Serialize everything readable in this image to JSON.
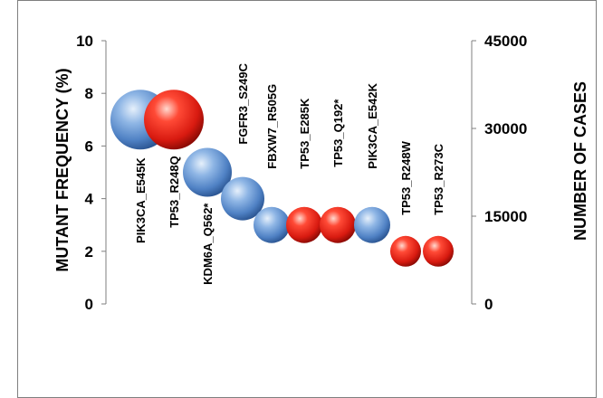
{
  "chart_data": {
    "type": "bubble",
    "title": "",
    "ylabel": "MUTANT FREQUENCY (%)",
    "y2label": "NUMBER OF CASES",
    "ylim": [
      0,
      10
    ],
    "y2lim": [
      0,
      45000
    ],
    "yticks": [
      "0",
      "2",
      "4",
      "6",
      "8",
      "10"
    ],
    "y2ticks": [
      "0",
      "15000",
      "30000",
      "45000"
    ],
    "grid": false,
    "points": [
      {
        "label": "PIK3CA_E545K",
        "y": 7.0,
        "gene": "PIK3CA",
        "color": "blue"
      },
      {
        "label": "TP53_R248Q",
        "y": 7.0,
        "gene": "TP53",
        "color": "red"
      },
      {
        "label": "KDM6A_Q562*",
        "y": 5.0,
        "gene": "KDM6A",
        "color": "blue"
      },
      {
        "label": "FGFR3_S249C",
        "y": 4.0,
        "gene": "FGFR3",
        "color": "blue"
      },
      {
        "label": "FBXW7_R505G",
        "y": 3.0,
        "gene": "FBXW7",
        "color": "blue"
      },
      {
        "label": "TP53_E285K",
        "y": 3.0,
        "gene": "TP53",
        "color": "red"
      },
      {
        "label": "TP53_Q192*",
        "y": 3.0,
        "gene": "TP53",
        "color": "red"
      },
      {
        "label": "PIK3CA_E542K",
        "y": 3.0,
        "gene": "PIK3CA",
        "color": "blue"
      },
      {
        "label": "TP53_R248W",
        "y": 2.0,
        "gene": "TP53",
        "color": "red"
      },
      {
        "label": "TP53_R273C",
        "y": 2.0,
        "gene": "TP53",
        "color": "red"
      }
    ],
    "colors": {
      "blue": "#5b8fd0",
      "red": "#e3261c"
    }
  }
}
